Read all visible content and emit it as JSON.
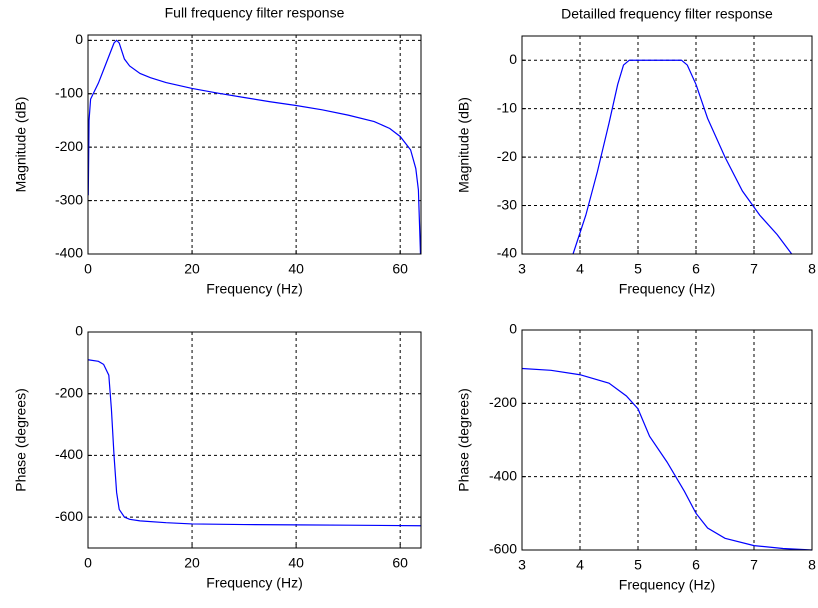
{
  "chart_data": [
    {
      "type": "line",
      "title": "Full frequency filter response",
      "xlabel": "Frequency (Hz)",
      "ylabel": "Magnitude (dB)",
      "x": [
        0.05,
        0.2,
        0.5,
        1,
        2,
        3,
        4,
        5,
        5.5,
        6,
        7,
        8,
        10,
        12,
        15,
        20,
        25,
        30,
        35,
        40,
        45,
        50,
        55,
        58,
        60,
        62,
        63,
        63.5,
        63.9
      ],
      "series": [
        {
          "color": "#0000ff",
          "values": [
            -290,
            -150,
            -110,
            -100,
            -80,
            -55,
            -30,
            -5,
            0,
            -5,
            -35,
            -48,
            -62,
            -70,
            -79,
            -90,
            -99,
            -107,
            -115,
            -122,
            -130,
            -140,
            -152,
            -165,
            -180,
            -205,
            -240,
            -280,
            -400
          ]
        }
      ],
      "xlim": [
        0,
        64
      ],
      "ylim": [
        -400,
        10
      ],
      "xticks": [
        0,
        20,
        40,
        60
      ],
      "yticks": [
        -400,
        -300,
        -200,
        -100,
        0
      ],
      "grid": true
    },
    {
      "type": "line",
      "title": "Detailled frequency filter response",
      "xlabel": "Frequency (Hz)",
      "ylabel": "Magnitude (dB)",
      "x": [
        3.88,
        4.1,
        4.3,
        4.5,
        4.65,
        4.75,
        4.85,
        5.75,
        5.85,
        6.0,
        6.2,
        6.5,
        6.8,
        7.1,
        7.4,
        7.65
      ],
      "series": [
        {
          "color": "#0000ff",
          "values": [
            -40,
            -32,
            -23,
            -13,
            -5,
            -1,
            0,
            0,
            -1,
            -5,
            -12,
            -20,
            -27,
            -32,
            -36,
            -40
          ]
        }
      ],
      "xlim": [
        3,
        8
      ],
      "ylim": [
        -40,
        5
      ],
      "xticks": [
        3,
        4,
        5,
        6,
        7,
        8
      ],
      "yticks": [
        -40,
        -30,
        -20,
        -10,
        0
      ],
      "grid": true
    },
    {
      "type": "line",
      "xlabel": "Frequency (Hz)",
      "ylabel": "Phase (degrees)",
      "x": [
        0,
        2,
        3,
        4,
        4.5,
        5,
        5.5,
        6,
        7,
        8,
        10,
        15,
        20,
        30,
        40,
        50,
        64
      ],
      "series": [
        {
          "color": "#0000ff",
          "values": [
            -90,
            -95,
            -105,
            -140,
            -250,
            -400,
            -520,
            -575,
            -600,
            -607,
            -612,
            -618,
            -622,
            -624,
            -625,
            -626,
            -628
          ]
        }
      ],
      "xlim": [
        0,
        64
      ],
      "ylim": [
        -700,
        0
      ],
      "xticks": [
        0,
        20,
        40,
        60
      ],
      "yticks": [
        -600,
        -400,
        -200,
        0
      ],
      "grid": true
    },
    {
      "type": "line",
      "xlabel": "Frequency (Hz)",
      "ylabel": "Phase (degrees)",
      "x": [
        3,
        3.5,
        4,
        4.5,
        4.8,
        5,
        5.2,
        5.5,
        5.8,
        6.0,
        6.2,
        6.5,
        7,
        7.5,
        8
      ],
      "series": [
        {
          "color": "#0000ff",
          "values": [
            -105,
            -110,
            -122,
            -145,
            -180,
            -215,
            -290,
            -360,
            -440,
            -500,
            -540,
            -568,
            -588,
            -596,
            -600
          ]
        }
      ],
      "xlim": [
        3,
        8
      ],
      "ylim": [
        -600,
        0
      ],
      "xticks": [
        3,
        4,
        5,
        6,
        7,
        8
      ],
      "yticks": [
        -600,
        -400,
        -200,
        0
      ],
      "grid": true
    }
  ]
}
